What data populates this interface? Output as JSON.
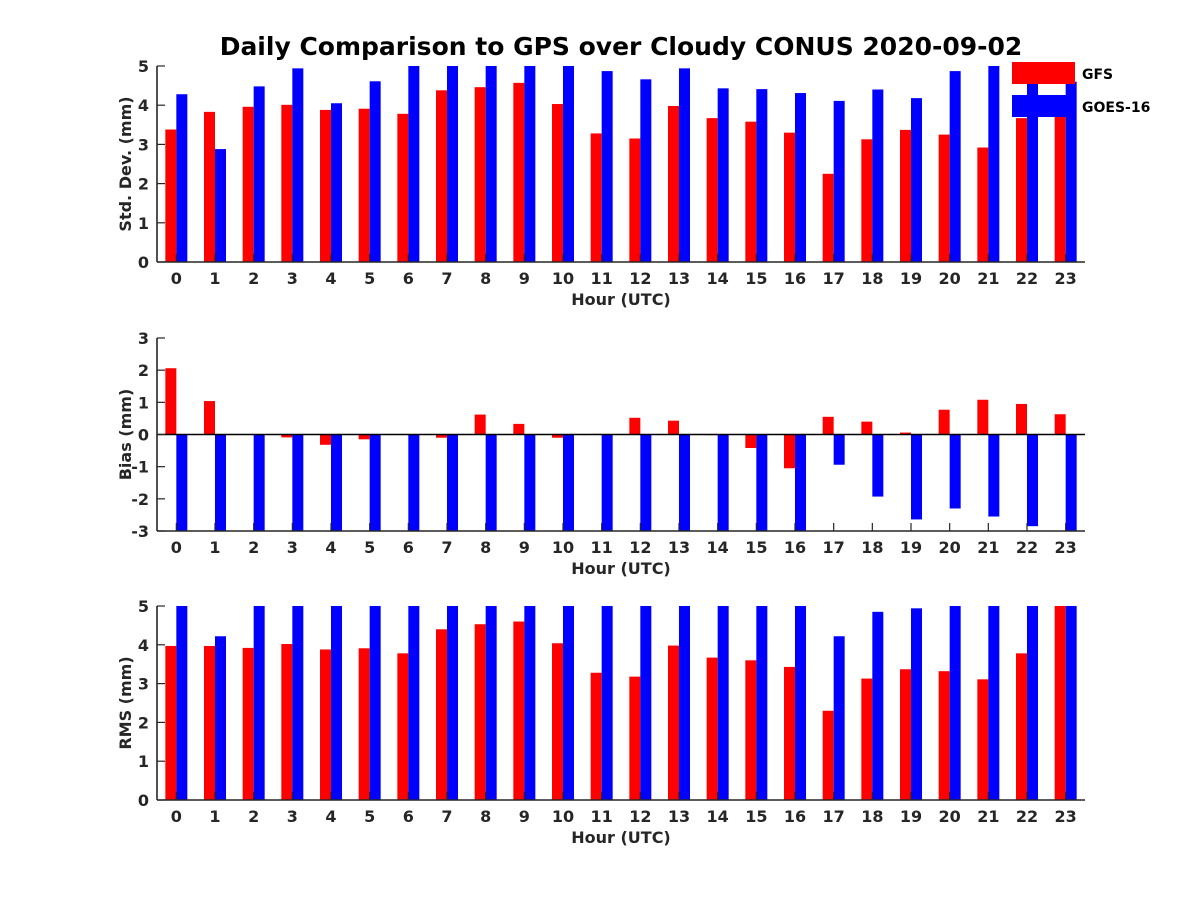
{
  "title": "Daily Comparison to GPS over Cloudy CONUS 2020-09-02",
  "legend": {
    "location": "top-right",
    "entries": [
      {
        "name": "GFS",
        "color": "#ff0000"
      },
      {
        "name": "GOES-16",
        "color": "#0000ff"
      }
    ]
  },
  "chart_data": [
    {
      "type": "bar",
      "id": "std",
      "ylabel": "Std. Dev. (mm)",
      "xlabel": "Hour (UTC)",
      "ylim": [
        0,
        5
      ],
      "yticks": [
        0,
        1,
        2,
        3,
        4,
        5
      ],
      "categories": [
        "0",
        "1",
        "2",
        "3",
        "4",
        "5",
        "6",
        "7",
        "8",
        "9",
        "10",
        "11",
        "12",
        "13",
        "14",
        "15",
        "16",
        "17",
        "18",
        "19",
        "20",
        "21",
        "22",
        "23"
      ],
      "series": [
        {
          "name": "GFS",
          "color": "#ff0000",
          "values": [
            3.38,
            3.83,
            3.96,
            4.01,
            3.88,
            3.91,
            3.78,
            4.38,
            4.46,
            4.57,
            4.03,
            3.28,
            3.15,
            3.98,
            3.67,
            3.58,
            3.3,
            2.25,
            3.13,
            3.37,
            3.25,
            2.92,
            3.67,
            3.9
          ]
        },
        {
          "name": "GOES-16",
          "color": "#0000ff",
          "values": [
            4.28,
            2.88,
            4.48,
            4.94,
            4.05,
            4.61,
            5.0,
            5.0,
            5.0,
            5.0,
            5.0,
            4.87,
            4.66,
            4.94,
            4.43,
            4.41,
            4.31,
            4.11,
            4.4,
            4.18,
            4.87,
            5.0,
            5.0,
            4.6
          ]
        }
      ]
    },
    {
      "type": "bar",
      "id": "bias",
      "ylabel": "Bias (mm)",
      "xlabel": "Hour (UTC)",
      "ylim": [
        -3,
        3
      ],
      "yticks": [
        -3,
        -2,
        -1,
        0,
        1,
        2,
        3
      ],
      "zero_line": true,
      "categories": [
        "0",
        "1",
        "2",
        "3",
        "4",
        "5",
        "6",
        "7",
        "8",
        "9",
        "10",
        "11",
        "12",
        "13",
        "14",
        "15",
        "16",
        "17",
        "18",
        "19",
        "20",
        "21",
        "22",
        "23"
      ],
      "series": [
        {
          "name": "GFS",
          "color": "#ff0000",
          "values": [
            2.06,
            1.04,
            0.0,
            -0.09,
            -0.32,
            -0.15,
            0.0,
            -0.1,
            0.62,
            0.33,
            -0.1,
            0.02,
            0.52,
            0.43,
            -0.02,
            -0.42,
            -1.05,
            0.55,
            0.4,
            0.06,
            0.77,
            1.08,
            0.95,
            0.63
          ]
        },
        {
          "name": "GOES-16",
          "color": "#0000ff",
          "values": [
            -3.0,
            -3.0,
            -3.0,
            -3.0,
            -3.0,
            -3.0,
            -3.0,
            -3.0,
            -3.0,
            -3.0,
            -3.0,
            -3.0,
            -3.0,
            -3.0,
            -3.0,
            -3.0,
            -3.0,
            -0.94,
            -1.93,
            -2.64,
            -2.3,
            -2.55,
            -2.85,
            -3.0
          ]
        }
      ]
    },
    {
      "type": "bar",
      "id": "rms",
      "ylabel": "RMS (mm)",
      "xlabel": "Hour (UTC)",
      "ylim": [
        0,
        5
      ],
      "yticks": [
        0,
        1,
        2,
        3,
        4,
        5
      ],
      "categories": [
        "0",
        "1",
        "2",
        "3",
        "4",
        "5",
        "6",
        "7",
        "8",
        "9",
        "10",
        "11",
        "12",
        "13",
        "14",
        "15",
        "16",
        "17",
        "18",
        "19",
        "20",
        "21",
        "22",
        "23"
      ],
      "series": [
        {
          "name": "GFS",
          "color": "#ff0000",
          "values": [
            3.97,
            3.97,
            3.92,
            4.02,
            3.88,
            3.91,
            3.78,
            4.4,
            4.53,
            4.6,
            4.04,
            3.28,
            3.18,
            3.98,
            3.67,
            3.6,
            3.43,
            2.3,
            3.13,
            3.37,
            3.32,
            3.11,
            3.78,
            5.0
          ]
        },
        {
          "name": "GOES-16",
          "color": "#0000ff",
          "values": [
            5.0,
            4.22,
            5.0,
            5.0,
            5.0,
            5.0,
            5.0,
            5.0,
            5.0,
            5.0,
            5.0,
            5.0,
            5.0,
            5.0,
            5.0,
            5.0,
            5.0,
            4.22,
            4.85,
            4.94,
            5.0,
            5.0,
            5.0,
            5.0
          ]
        }
      ]
    }
  ]
}
